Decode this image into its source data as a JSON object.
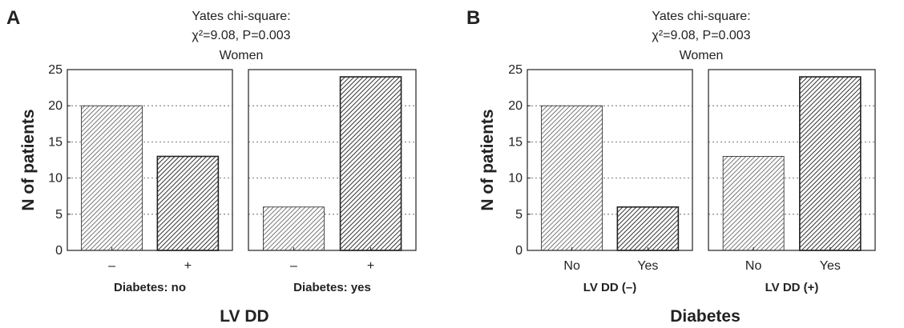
{
  "chart_data": [
    {
      "panel_label": "A",
      "type": "bar",
      "title_lines": [
        "Yates chi-square:",
        "χ²=9.08, P=0.003",
        "Women"
      ],
      "ylabel": "N of patients",
      "xlabel": "LV DD",
      "ylim": [
        0,
        25
      ],
      "yticks": [
        0,
        5,
        10,
        15,
        20,
        25
      ],
      "grid": true,
      "subplots": [
        {
          "group_label": "Diabetes: no",
          "categories": [
            "–",
            "+"
          ],
          "values": [
            20,
            13
          ]
        },
        {
          "group_label": "Diabetes: yes",
          "categories": [
            "–",
            "+"
          ],
          "values": [
            6,
            24
          ]
        }
      ]
    },
    {
      "panel_label": "B",
      "type": "bar",
      "title_lines": [
        "Yates chi-square:",
        "χ²=9.08, P=0.003",
        "Women"
      ],
      "ylabel": "N of patients",
      "xlabel": "Diabetes",
      "ylim": [
        0,
        25
      ],
      "yticks": [
        0,
        5,
        10,
        15,
        20,
        25
      ],
      "grid": true,
      "subplots": [
        {
          "group_label": "LV DD (–)",
          "categories": [
            "No",
            "Yes"
          ],
          "values": [
            20,
            6
          ]
        },
        {
          "group_label": "LV DD (+)",
          "categories": [
            "No",
            "Yes"
          ],
          "values": [
            13,
            24
          ]
        }
      ]
    }
  ]
}
